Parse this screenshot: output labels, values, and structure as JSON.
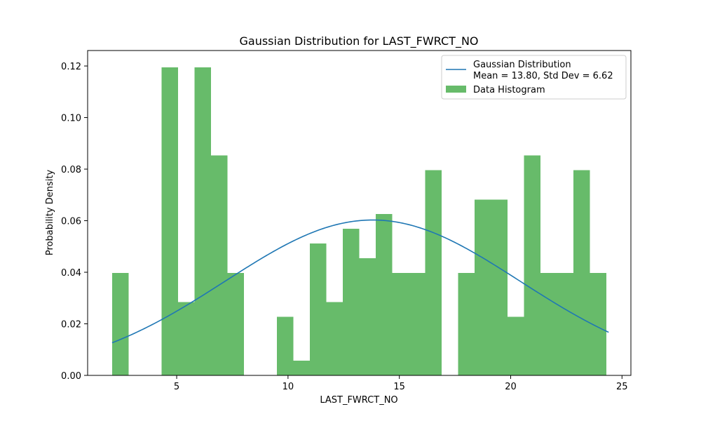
{
  "chart_data": {
    "type": "bar",
    "title": "Gaussian Distribution for LAST_FWRCT_NO",
    "xlabel": "LAST_FWRCT_NO",
    "ylabel": "Probability Density",
    "xlim": [
      1.0,
      25.4
    ],
    "ylim": [
      0.0,
      0.126
    ],
    "xticks": [
      5,
      10,
      15,
      20,
      25
    ],
    "yticks": [
      0.0,
      0.02,
      0.04,
      0.06,
      0.08,
      0.1,
      0.12
    ],
    "ytick_labels": [
      "0.00",
      "0.02",
      "0.04",
      "0.06",
      "0.08",
      "0.10",
      "0.12"
    ],
    "grid": false,
    "legend_placement": "top-right",
    "histogram": {
      "name": "Data Histogram",
      "color": "#4caf50",
      "bin_start": 2.1,
      "bin_width": 0.74,
      "values": [
        0.0398,
        0,
        0,
        0.1195,
        0.0285,
        0.1195,
        0.0853,
        0.0398,
        0,
        0,
        0.0227,
        0.0057,
        0.0512,
        0.0285,
        0.0569,
        0.0455,
        0.0626,
        0.0398,
        0.0398,
        0.0796,
        0,
        0.0398,
        0.0682,
        0.0682,
        0.0227,
        0.0853,
        0.0398,
        0.0398,
        0.0796,
        0.0398
      ]
    },
    "gaussian": {
      "label_line1": "Gaussian Distribution",
      "label_line2": "Mean = 13.80, Std Dev = 6.62",
      "mean": 13.8,
      "std": 6.62,
      "x_start": 2.1,
      "x_end": 24.4,
      "color": "#1f77b4"
    }
  }
}
